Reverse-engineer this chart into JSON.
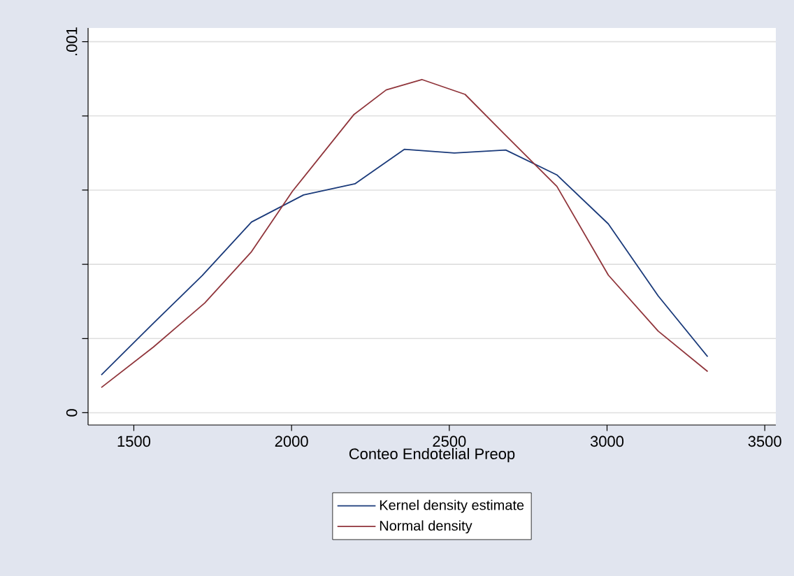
{
  "chart_data": {
    "type": "line",
    "xlabel": "Conteo Endotelial Preop",
    "xlim": [
      1355,
      3535
    ],
    "xticks": [
      1500,
      2000,
      2500,
      3000,
      3500
    ],
    "ylim": [
      -3.3e-05,
      0.001037
    ],
    "yticks": [
      0,
      {
        "value": 0.0002,
        "label": null
      },
      {
        "value": 0.0004,
        "label": null
      },
      {
        "value": 0.0006,
        "label": null
      },
      {
        "value": 0.0008,
        "label": null
      },
      {
        "value": 0.001,
        "label": ".001"
      }
    ],
    "grid": "y",
    "legend": "bottom",
    "marker": "none",
    "line_style": "solid",
    "series": [
      {
        "name": "Kernel density estimate",
        "color": "#1a3a7a",
        "x": [
          1397,
          1557,
          1717,
          1873,
          2038,
          2201,
          2358,
          2516,
          2679,
          2841,
          3004,
          3162,
          3319
        ],
        "values": [
          0.000102,
          0.000237,
          0.00037,
          0.000514,
          0.000587,
          0.000617,
          0.00071,
          0.0007,
          0.000708,
          0.000641,
          0.000509,
          0.000315,
          0.000151
        ]
      },
      {
        "name": "Normal density",
        "color": "#90353b",
        "x": [
          1397,
          1562,
          1725,
          1873,
          2003,
          2198,
          2300,
          2413,
          2550,
          2671,
          2841,
          3004,
          3162,
          3319
        ],
        "values": [
          6.8e-05,
          0.000177,
          0.000296,
          0.000434,
          0.000597,
          0.000804,
          0.00087,
          0.000898,
          0.000858,
          0.000754,
          0.00061,
          0.000371,
          0.00022,
          0.000111
        ]
      }
    ]
  }
}
